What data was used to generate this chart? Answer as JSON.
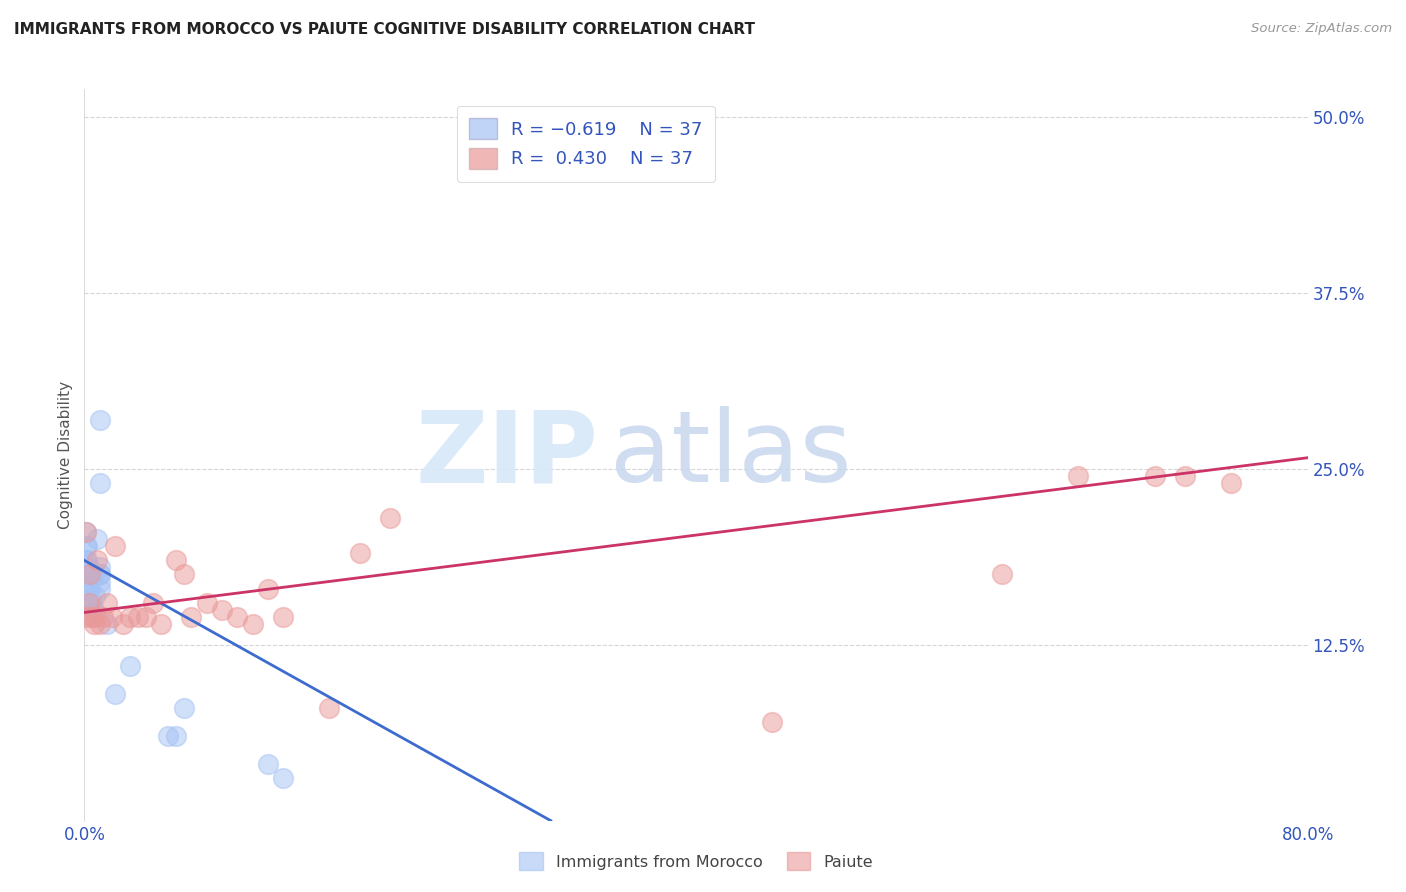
{
  "title": "IMMIGRANTS FROM MOROCCO VS PAIUTE COGNITIVE DISABILITY CORRELATION CHART",
  "source": "Source: ZipAtlas.com",
  "ylabel": "Cognitive Disability",
  "legend_label1": "Immigrants from Morocco",
  "legend_label2": "Paiute",
  "blue_color": "#a4c2f4",
  "pink_color": "#ea9999",
  "line_blue": "#3d6bce",
  "line_pink": "#cc3366",
  "watermark_zip": "ZIP",
  "watermark_atlas": "atlas",
  "xlim": [
    0.0,
    0.8
  ],
  "ylim": [
    0.0,
    0.52
  ],
  "yticks": [
    0.125,
    0.25,
    0.375,
    0.5
  ],
  "ytick_labels": [
    "12.5%",
    "25.0%",
    "37.5%",
    "50.0%"
  ],
  "xticks": [
    0.0,
    0.8
  ],
  "xtick_labels": [
    "0.0%",
    "80.0%"
  ],
  "blue_line_x": [
    0.0,
    0.305
  ],
  "blue_line_y": [
    0.185,
    0.0
  ],
  "pink_line_x": [
    0.0,
    0.8
  ],
  "pink_line_y": [
    0.148,
    0.258
  ],
  "blue_x": [
    0.001,
    0.001,
    0.001,
    0.001,
    0.002,
    0.002,
    0.002,
    0.002,
    0.002,
    0.003,
    0.003,
    0.003,
    0.003,
    0.004,
    0.004,
    0.004,
    0.005,
    0.005,
    0.006,
    0.006,
    0.007,
    0.008,
    0.01,
    0.01,
    0.01,
    0.01,
    0.01,
    0.01,
    0.01,
    0.015,
    0.02,
    0.03,
    0.055,
    0.06,
    0.065,
    0.12,
    0.13
  ],
  "blue_y": [
    0.175,
    0.185,
    0.195,
    0.205,
    0.165,
    0.175,
    0.18,
    0.185,
    0.195,
    0.155,
    0.165,
    0.17,
    0.18,
    0.155,
    0.165,
    0.175,
    0.145,
    0.155,
    0.15,
    0.175,
    0.16,
    0.2,
    0.165,
    0.17,
    0.175,
    0.175,
    0.18,
    0.24,
    0.285,
    0.14,
    0.09,
    0.11,
    0.06,
    0.06,
    0.08,
    0.04,
    0.03
  ],
  "pink_x": [
    0.001,
    0.002,
    0.003,
    0.004,
    0.005,
    0.006,
    0.007,
    0.008,
    0.01,
    0.012,
    0.015,
    0.018,
    0.02,
    0.025,
    0.03,
    0.035,
    0.04,
    0.045,
    0.05,
    0.06,
    0.065,
    0.07,
    0.08,
    0.09,
    0.1,
    0.11,
    0.12,
    0.13,
    0.16,
    0.18,
    0.2,
    0.45,
    0.6,
    0.65,
    0.7,
    0.72,
    0.75
  ],
  "pink_y": [
    0.205,
    0.145,
    0.155,
    0.175,
    0.145,
    0.14,
    0.145,
    0.185,
    0.14,
    0.145,
    0.155,
    0.145,
    0.195,
    0.14,
    0.145,
    0.145,
    0.145,
    0.155,
    0.14,
    0.185,
    0.175,
    0.145,
    0.155,
    0.15,
    0.145,
    0.14,
    0.165,
    0.145,
    0.08,
    0.19,
    0.215,
    0.07,
    0.175,
    0.245,
    0.245,
    0.245,
    0.24
  ]
}
